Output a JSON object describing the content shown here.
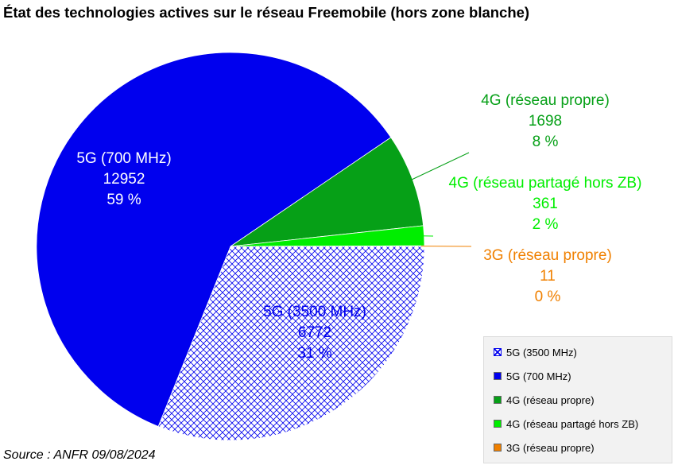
{
  "chart_data": {
    "type": "pie",
    "title": "État des technologies actives sur le réseau Freemobile (hors zone blanche)",
    "source": "Source : ANFR 09/08/2024",
    "legend_position": "bottom-right",
    "slices": [
      {
        "label": "5G (3500 MHz)",
        "value": 6772,
        "percent_label": "31 %",
        "color": "#0000ee",
        "pattern": "crosshatch"
      },
      {
        "label": "5G (700 MHz)",
        "value": 12952,
        "percent_label": "59 %",
        "color": "#0000ee"
      },
      {
        "label": "4G (réseau propre)",
        "value": 1698,
        "percent_label": "8 %",
        "color": "#06a017"
      },
      {
        "label": "4G (réseau partagé hors ZB)",
        "value": 361,
        "percent_label": "2 %",
        "color": "#00ee00"
      },
      {
        "label": "3G (réseau propre)",
        "value": 11,
        "percent_label": "0 %",
        "color": "#f08000"
      }
    ]
  }
}
